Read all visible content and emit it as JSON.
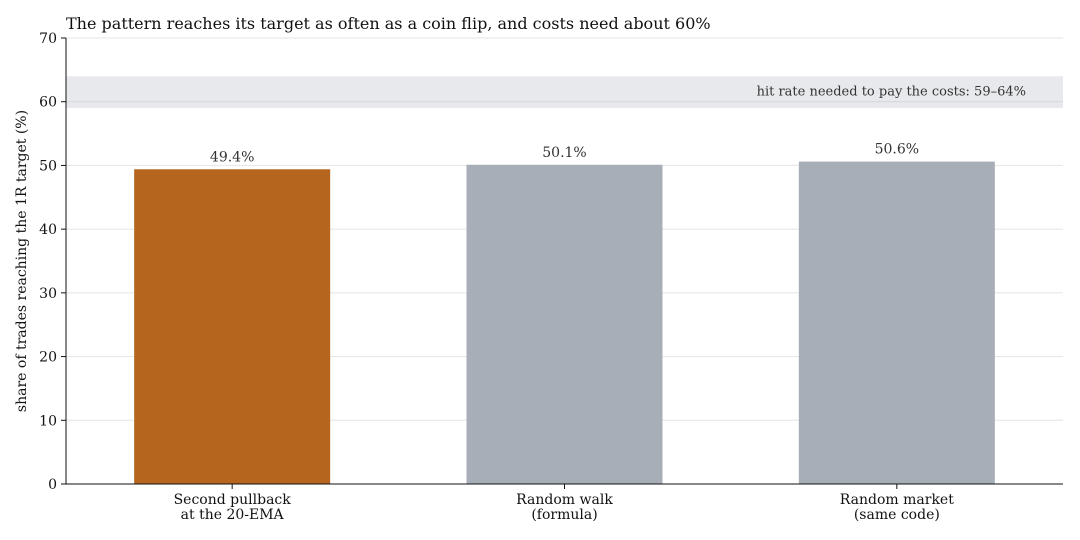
{
  "chart_data": {
    "type": "bar",
    "title": "The pattern reaches its target as often as a coin flip, and costs need about 60%",
    "xlabel": "",
    "ylabel": "share of trades reaching the 1R target (%)",
    "categories": [
      "Second pullback\nat the 20-EMA",
      "Random walk\n(formula)",
      "Random market\n(same code)"
    ],
    "values": [
      49.4,
      50.1,
      50.6
    ],
    "value_labels": [
      "49.4%",
      "50.1%",
      "50.6%"
    ],
    "bar_colors": [
      "#b5651d",
      "#a8aeb7",
      "#a8aeb7"
    ],
    "ylim": [
      0,
      70
    ],
    "yticks": [
      0,
      10,
      20,
      30,
      40,
      50,
      60,
      70
    ],
    "grid": "horizontal",
    "reference_band": {
      "from": 59,
      "to": 64,
      "line_at": 60,
      "label": "hit rate needed to pay the costs: 59–64%",
      "color": "#e8e9ec"
    }
  }
}
